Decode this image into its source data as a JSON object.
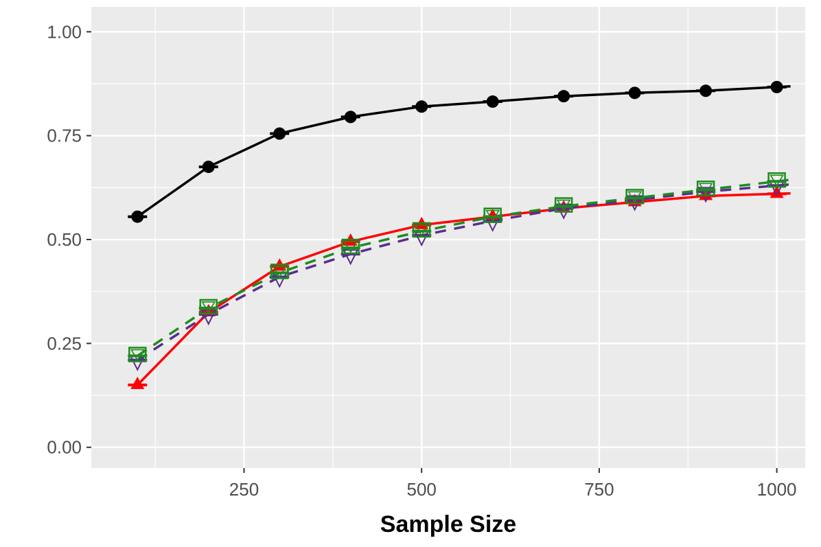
{
  "chart_data": {
    "type": "line",
    "title": "",
    "xlabel": "Sample Size",
    "ylabel": "",
    "x": [
      100,
      200,
      300,
      400,
      500,
      600,
      700,
      800,
      900,
      1000
    ],
    "xlim": [
      35,
      1040
    ],
    "ylim": [
      -0.05,
      1.06
    ],
    "x_ticks": [
      250,
      500,
      750,
      1000
    ],
    "x_tick_labels": [
      "250",
      "500",
      "750",
      "1000"
    ],
    "y_ticks": [
      0,
      0.25,
      0.5,
      0.75,
      1.0
    ],
    "y_tick_labels": [
      "0.00",
      "0.25",
      "0.50",
      "0.75",
      "1.00"
    ],
    "grid": true,
    "legend": "none",
    "background": "#ebebeb",
    "series": [
      {
        "color": "#000000",
        "linestyle": "solid",
        "marker": "filled-circle",
        "values": [
          0.555,
          0.675,
          0.755,
          0.795,
          0.82,
          0.832,
          0.845,
          0.853,
          0.858,
          0.867
        ]
      },
      {
        "color": "#ff0000",
        "linestyle": "solid",
        "marker": "filled-triangle",
        "values": [
          0.15,
          0.325,
          0.435,
          0.495,
          0.535,
          0.555,
          0.575,
          0.59,
          0.605,
          0.61
        ]
      },
      {
        "color": "#5b2c8f",
        "linestyle": "dashed",
        "marker": "open-triangle-down",
        "values": [
          0.21,
          0.32,
          0.41,
          0.465,
          0.51,
          0.545,
          0.575,
          0.595,
          0.615,
          0.63
        ]
      },
      {
        "color": "#1e8c1e",
        "linestyle": "dashed",
        "marker": "open-square",
        "values": [
          0.22,
          0.335,
          0.42,
          0.48,
          0.52,
          0.555,
          0.58,
          0.6,
          0.62,
          0.64
        ]
      }
    ]
  }
}
